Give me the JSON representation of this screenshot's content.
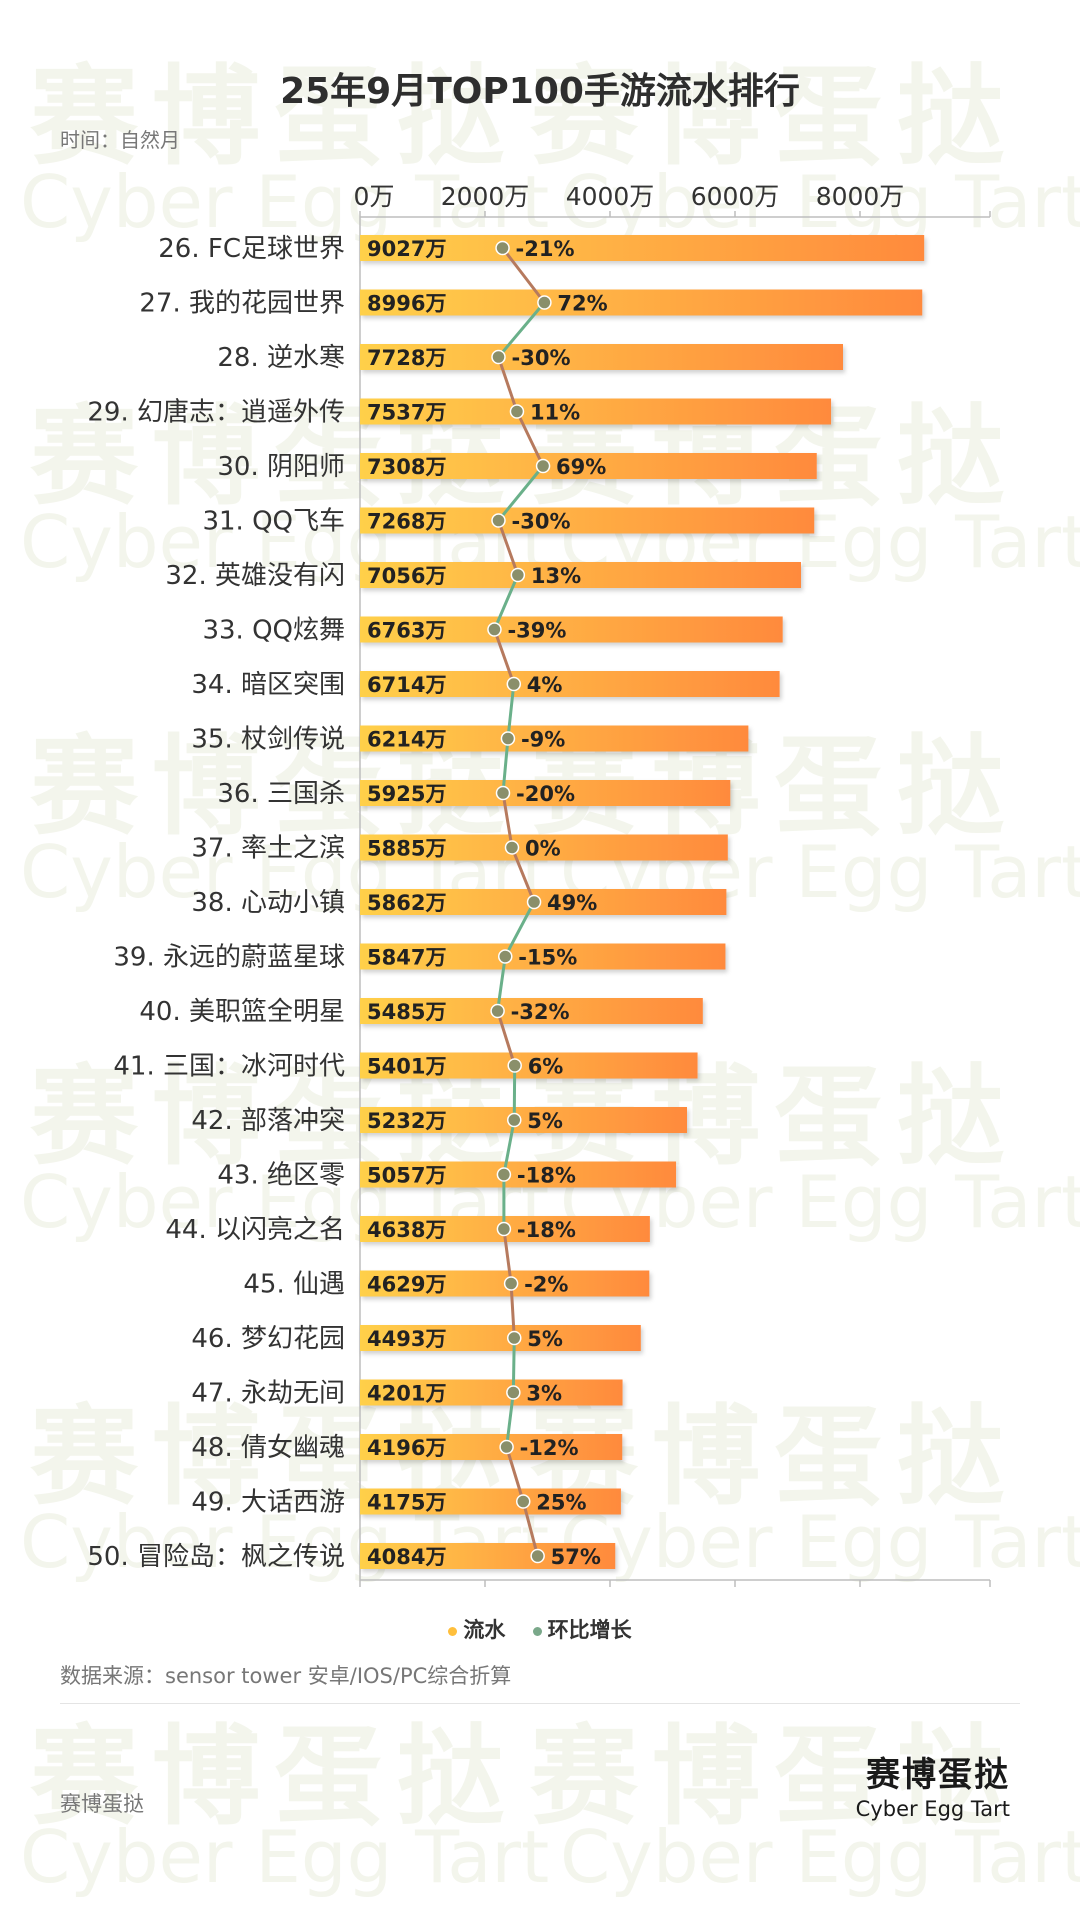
{
  "header": {
    "title": "25年9月TOP100手游流水排行",
    "subtitle": "时间：自然月"
  },
  "legend": {
    "bar_label": "流水",
    "line_label": "环比增长"
  },
  "footer": {
    "source": "数据来源：sensor tower 安卓/IOS/PC综合折算",
    "brand": "赛博蛋挞",
    "logo_cn": "赛博蛋挞",
    "logo_en": "Cyber Egg Tart"
  },
  "watermark": {
    "cn": "赛博蛋挞",
    "en": "Cyber Egg Tart"
  },
  "colors": {
    "bar_start": "#ffd04a",
    "bar_end": "#ff8a3d",
    "line_up": "#b67a5e",
    "line_down": "#6ab08a",
    "dot": "#8a8f6a",
    "legend_bar": "#ffbf3c",
    "legend_line": "#7aa88a"
  },
  "chart_data": {
    "type": "bar",
    "orientation": "horizontal",
    "title": "25年9月TOP100手游流水排行",
    "x_axis": {
      "ticks": [
        0,
        2000,
        4000,
        6000,
        8000
      ],
      "tick_labels": [
        "0万",
        "2000万",
        "4000万",
        "6000万",
        "8000万"
      ],
      "range": [
        0,
        10000
      ],
      "unit": "万"
    },
    "categories": [
      "26. FC足球世界",
      "27. 我的花园世界",
      "28. 逆水寒",
      "29. 幻唐志：逍遥外传",
      "30. 阴阳师",
      "31. QQ飞车",
      "32. 英雄没有闪",
      "33. QQ炫舞",
      "34. 暗区突围",
      "35. 杖剑传说",
      "36. 三国杀",
      "37. 率土之滨",
      "38. 心动小镇",
      "39. 永远的蔚蓝星球",
      "40. 美职篮全明星",
      "41. 三国：冰河时代",
      "42. 部落冲突",
      "43. 绝区零",
      "44. 以闪亮之名",
      "45. 仙遇",
      "46. 梦幻花园",
      "47. 永劫无间",
      "48. 倩女幽魂",
      "49. 大话西游",
      "50. 冒险岛：枫之传说"
    ],
    "series": [
      {
        "name": "流水",
        "values": [
          9027,
          8996,
          7728,
          7537,
          7308,
          7268,
          7056,
          6763,
          6714,
          6214,
          5925,
          5885,
          5862,
          5847,
          5485,
          5401,
          5232,
          5057,
          4638,
          4629,
          4493,
          4201,
          4196,
          4175,
          4084
        ],
        "labels": [
          "9027万",
          "8996万",
          "7728万",
          "7537万",
          "7308万",
          "7268万",
          "7056万",
          "6763万",
          "6714万",
          "6214万",
          "5925万",
          "5885万",
          "5862万",
          "5847万",
          "5485万",
          "5401万",
          "5232万",
          "5057万",
          "4638万",
          "4629万",
          "4493万",
          "4201万",
          "4196万",
          "4175万",
          "4084万"
        ]
      },
      {
        "name": "环比增长",
        "values": [
          -21,
          72,
          -30,
          11,
          69,
          -30,
          13,
          -39,
          4,
          -9,
          -20,
          0,
          49,
          -15,
          -32,
          6,
          5,
          -18,
          -18,
          -2,
          5,
          3,
          -12,
          25,
          57
        ],
        "labels": [
          "-21%",
          "72%",
          "-30%",
          "11%",
          "69%",
          "-30%",
          "13%",
          "-39%",
          "4%",
          "-9%",
          "-20%",
          "0%",
          "49%",
          "-15%",
          "-32%",
          "6%",
          "5%",
          "-18%",
          "-18%",
          "-2%",
          "5%",
          "3%",
          "-12%",
          "25%",
          "57%"
        ]
      }
    ],
    "legend_position": "bottom-center",
    "grid": false
  }
}
